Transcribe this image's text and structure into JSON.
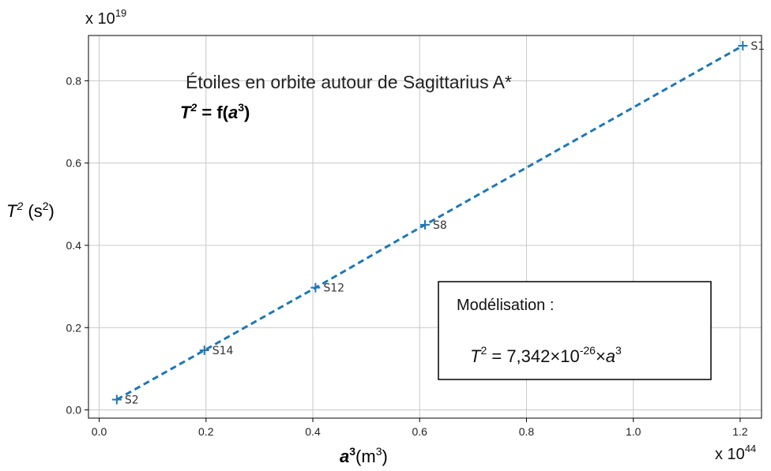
{
  "chart_data": {
    "type": "scatter",
    "title": "Étoiles en orbite autour de Sagittarius A*",
    "subtitle": {
      "base": "T",
      "exp1": "2",
      "mid": " = f(",
      "var": "a",
      "exp2": "3",
      "end": ")"
    },
    "ylabel": {
      "var": "T",
      "exp": "2",
      "unit_open": " (s",
      "unit_exp": "2",
      "unit_close": ")"
    },
    "xlabel": {
      "var": "a",
      "exp": "3",
      "unit_open": "(m",
      "unit_exp": "3",
      "unit_close": ")"
    },
    "x_multiplier": {
      "prefix": "x 10",
      "exp": "44"
    },
    "y_multiplier": {
      "prefix": "x 10",
      "exp": "19"
    },
    "xlim": [
      -0.02,
      1.24
    ],
    "ylim": [
      -0.02,
      0.91
    ],
    "xticks": [
      0.0,
      0.2,
      0.4,
      0.6,
      0.8,
      1.0,
      1.2
    ],
    "xtick_labels": [
      "0.0",
      "0.2",
      "0.4",
      "0.6",
      "0.8",
      "1.0",
      "1.2"
    ],
    "yticks": [
      0.0,
      0.2,
      0.4,
      0.6,
      0.8
    ],
    "ytick_labels": [
      "0.0",
      "0.2",
      "0.4",
      "0.6",
      "0.8"
    ],
    "grid": true,
    "series": [
      {
        "x": [
          0.033,
          0.197,
          0.405,
          0.61,
          1.205
        ],
        "y": [
          0.025,
          0.145,
          0.297,
          0.45,
          0.885
        ],
        "labels": [
          "S2",
          "S14",
          "S12",
          "S8",
          "S1"
        ],
        "color": "#1f77b4",
        "line_style": "dashed",
        "marker": "+"
      }
    ],
    "model_box": {
      "title": "Modélisation :",
      "equation": {
        "lhs": "T",
        "lhs_exp": "2",
        "eq": " = 7,342×10",
        "coef_exp": "-26",
        "times": "×",
        "var": "a",
        "var_exp": "3"
      }
    }
  }
}
